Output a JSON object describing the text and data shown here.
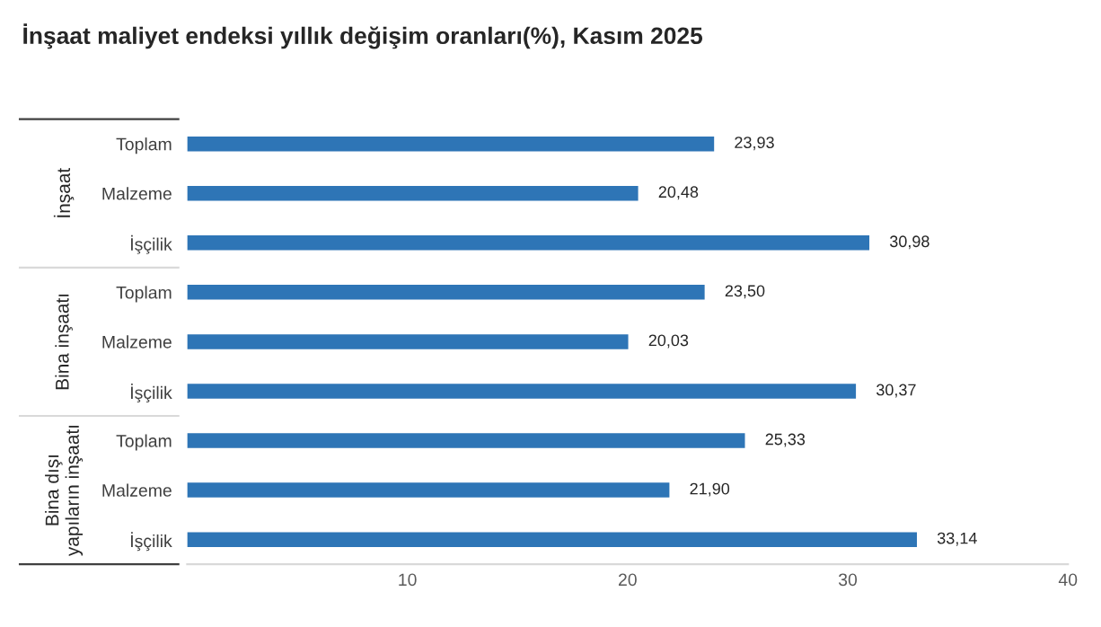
{
  "chart_data": {
    "type": "bar",
    "orientation": "horizontal",
    "title": "İnşaat maliyet endeksi yıllık değişim oranları(%), Kasım 2025",
    "categories": [
      "Toplam",
      "Malzeme",
      "İşçilik",
      "Toplam",
      "Malzeme",
      "İşçilik",
      "Toplam",
      "Malzeme",
      "İşçilik"
    ],
    "values": [
      23.93,
      20.48,
      30.98,
      23.5,
      20.03,
      30.37,
      25.33,
      21.9,
      33.14
    ],
    "value_labels": [
      "23,93",
      "20,48",
      "30,98",
      "23,50",
      "20,03",
      "30,37",
      "25,33",
      "21,90",
      "33,14"
    ],
    "color": "#2e75b6",
    "xlim": [
      0,
      40
    ],
    "xticks": [
      10,
      20,
      30,
      40
    ],
    "grid": false,
    "legend": false,
    "annotations": [
      "İnşaat",
      "Bina inşaatı",
      "Bina dışı\nyapıların inşaatı"
    ]
  }
}
